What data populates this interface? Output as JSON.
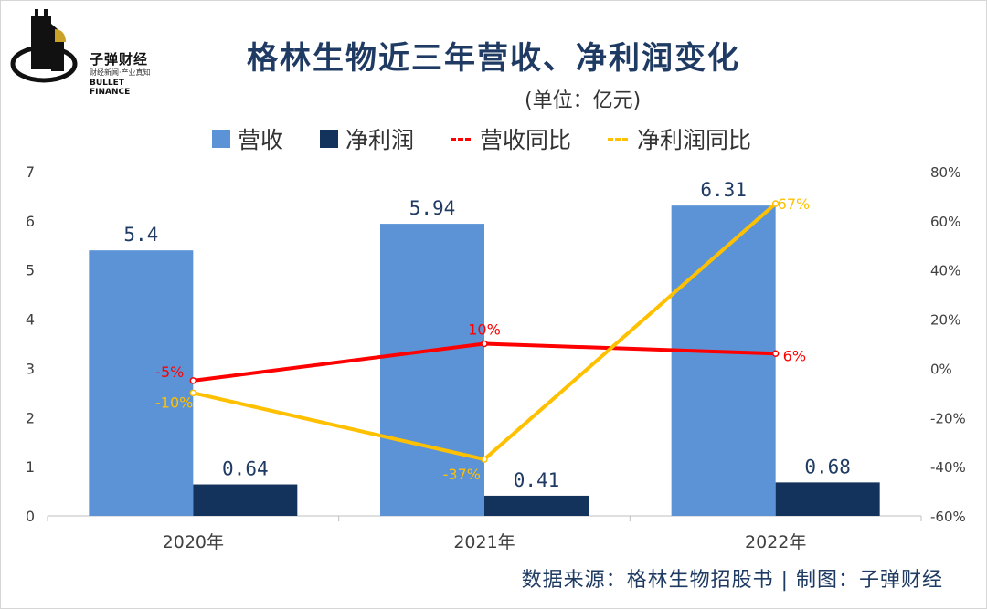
{
  "logo": {
    "name": "子弹财经",
    "tagline": "财经新闻·产业真知",
    "en": "BULLET FINANCE"
  },
  "title": "格林生物近三年营收、净利润变化",
  "unit": "(单位：亿元)",
  "source": "数据来源：格林生物招股书 | 制图：子弹财经",
  "colors": {
    "revenue": "#5b93d6",
    "profit": "#14335c",
    "revenue_yoy": "#ff0000",
    "profit_yoy": "#ffc000",
    "title": "#1f3b63"
  },
  "chart_data": {
    "type": "bar",
    "categories": [
      "2020年",
      "2021年",
      "2022年"
    ],
    "series": [
      {
        "name": "营收",
        "kind": "bar",
        "axis": "left",
        "values": [
          5.4,
          5.94,
          6.31
        ],
        "labels": [
          "5.4",
          "5.94",
          "6.31"
        ]
      },
      {
        "name": "净利润",
        "kind": "bar",
        "axis": "left",
        "values": [
          0.64,
          0.41,
          0.68
        ],
        "labels": [
          "0.64",
          "0.41",
          "0.68"
        ]
      },
      {
        "name": "营收同比",
        "kind": "line",
        "axis": "right",
        "values": [
          -5,
          10,
          6
        ],
        "labels": [
          "-5%",
          "10%",
          "6%"
        ]
      },
      {
        "name": "净利润同比",
        "kind": "line",
        "axis": "right",
        "values": [
          -10,
          -37,
          67
        ],
        "labels": [
          "-10%",
          "-37%",
          "67%"
        ]
      }
    ],
    "left_axis": {
      "min": 0,
      "max": 7,
      "ticks": [
        "0",
        "1",
        "2",
        "3",
        "4",
        "5",
        "6",
        "7"
      ]
    },
    "right_axis": {
      "min": -60,
      "max": 80,
      "ticks": [
        "-60%",
        "-40%",
        "-20%",
        "0%",
        "20%",
        "40%",
        "60%",
        "80%"
      ]
    },
    "legend": [
      "营收",
      "净利润",
      "营收同比",
      "净利润同比"
    ]
  }
}
